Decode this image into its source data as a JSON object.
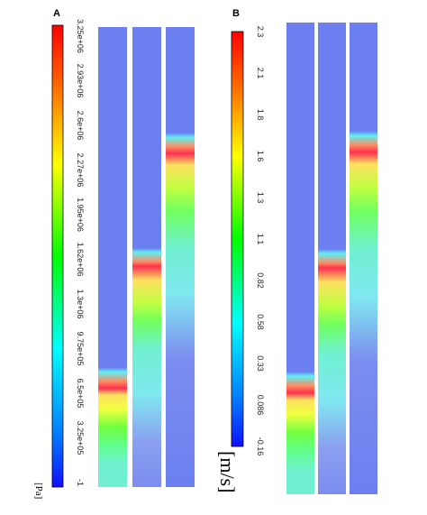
{
  "panels": [
    {
      "label": "A",
      "unit": "[Pa]",
      "ticks": [
        "3.25e+06",
        "2.93e+06",
        "2.6e+06",
        "2.27e+06",
        "1.95e+06",
        "1.62e+06",
        "1.3e+06",
        "9.75e+05",
        "6.5e+05",
        "3.25e+05",
        "-1"
      ]
    },
    {
      "label": "B",
      "unit": "[m/s]",
      "ticks": [
        "2.3",
        "2.1",
        "1.8",
        "1.6",
        "1.3",
        "1.1",
        "0.82",
        "0.58",
        "0.33",
        "0.086",
        "-0.16"
      ]
    }
  ]
}
